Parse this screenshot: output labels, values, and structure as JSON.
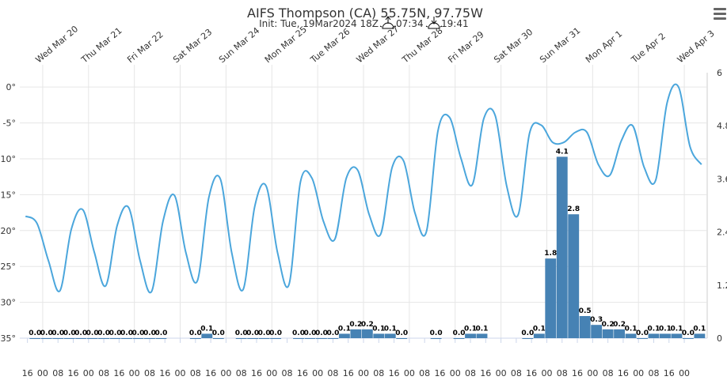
{
  "chart_data": {
    "type": "meteogram",
    "title": "AIFS Thompson (CA) 55.75N, 97.75W",
    "init": "Init: Tue, 19Mar2024 18Z",
    "sunrise": "07:34",
    "sunset": "19:41",
    "xlim": [
      0,
      360
    ],
    "xticks": [
      {
        "value": 4,
        "label": "16"
      },
      {
        "value": 12,
        "label": "00"
      },
      {
        "value": 20,
        "label": "08"
      },
      {
        "value": 28,
        "label": "16"
      },
      {
        "value": 36,
        "label": "00"
      },
      {
        "value": 44,
        "label": "08"
      },
      {
        "value": 52,
        "label": "16"
      },
      {
        "value": 60,
        "label": "00"
      },
      {
        "value": 68,
        "label": "08"
      },
      {
        "value": 76,
        "label": "16"
      },
      {
        "value": 84,
        "label": "00"
      },
      {
        "value": 92,
        "label": "08"
      },
      {
        "value": 100,
        "label": "16"
      },
      {
        "value": 108,
        "label": "00"
      },
      {
        "value": 116,
        "label": "08"
      },
      {
        "value": 124,
        "label": "16"
      },
      {
        "value": 132,
        "label": "00"
      },
      {
        "value": 140,
        "label": "08"
      },
      {
        "value": 148,
        "label": "16"
      },
      {
        "value": 156,
        "label": "00"
      },
      {
        "value": 164,
        "label": "08"
      },
      {
        "value": 172,
        "label": "16"
      },
      {
        "value": 180,
        "label": "00"
      },
      {
        "value": 188,
        "label": "08"
      },
      {
        "value": 196,
        "label": "16"
      },
      {
        "value": 204,
        "label": "00"
      },
      {
        "value": 212,
        "label": "08"
      },
      {
        "value": 220,
        "label": "16"
      },
      {
        "value": 228,
        "label": "00"
      },
      {
        "value": 236,
        "label": "08"
      },
      {
        "value": 244,
        "label": "16"
      },
      {
        "value": 252,
        "label": "00"
      },
      {
        "value": 260,
        "label": "08"
      },
      {
        "value": 268,
        "label": "16"
      },
      {
        "value": 276,
        "label": "00"
      },
      {
        "value": 284,
        "label": "08"
      },
      {
        "value": 292,
        "label": "16"
      },
      {
        "value": 300,
        "label": "00"
      },
      {
        "value": 308,
        "label": "08"
      },
      {
        "value": 316,
        "label": "16"
      },
      {
        "value": 324,
        "label": "00"
      },
      {
        "value": 332,
        "label": "08"
      },
      {
        "value": 340,
        "label": "16"
      },
      {
        "value": 348,
        "label": "00"
      }
    ],
    "x2ticks": [
      {
        "value": 12,
        "label": "Wed Mar 20"
      },
      {
        "value": 36,
        "label": "Thu Mar 21"
      },
      {
        "value": 60,
        "label": "Fri Mar 22"
      },
      {
        "value": 84,
        "label": "Sat Mar 23"
      },
      {
        "value": 108,
        "label": "Sun Mar 24"
      },
      {
        "value": 132,
        "label": "Mon Mar 25"
      },
      {
        "value": 156,
        "label": "Tue Mar 26"
      },
      {
        "value": 180,
        "label": "Wed Mar 27"
      },
      {
        "value": 204,
        "label": "Thu Mar 28"
      },
      {
        "value": 228,
        "label": "Fri Mar 29"
      },
      {
        "value": 252,
        "label": "Sat Mar 30"
      },
      {
        "value": 276,
        "label": "Sun Mar 31"
      },
      {
        "value": 300,
        "label": "Mon Apr 1"
      },
      {
        "value": 324,
        "label": "Tue Apr 2"
      },
      {
        "value": 348,
        "label": "Wed Apr 3"
      }
    ],
    "ylim": [
      -35,
      2
    ],
    "yticks": [
      {
        "value": 0,
        "label": "0°"
      },
      {
        "value": -5,
        "label": "-5°"
      },
      {
        "value": -10,
        "label": "-10°"
      },
      {
        "value": -15,
        "label": "-15°"
      },
      {
        "value": -20,
        "label": "-20°"
      },
      {
        "value": -25,
        "label": "-25°"
      },
      {
        "value": -30,
        "label": "-30°"
      },
      {
        "value": -35,
        "label": "-35°"
      }
    ],
    "y2lim": [
      0,
      6
    ],
    "y2ticks": [
      0,
      1.2,
      2.4,
      3.6,
      4.8,
      6
    ],
    "grid": true,
    "series": [
      {
        "type": "line",
        "color": "#4ba6dc",
        "x": [
          3,
          9,
          15,
          21,
          27,
          33,
          39,
          45,
          51,
          57,
          63,
          69,
          75,
          81,
          87,
          93,
          99,
          105,
          111,
          117,
          123,
          129,
          135,
          141,
          147,
          153,
          159,
          165,
          171,
          177,
          183,
          189,
          195,
          201,
          207,
          213,
          219,
          225,
          231,
          237,
          243,
          249,
          255,
          261,
          267,
          273,
          279,
          285,
          291,
          297,
          303,
          309,
          315,
          321,
          327,
          333,
          339,
          345,
          351,
          357
        ],
        "values": [
          -18.0,
          -19.0,
          -24.2,
          -28.4,
          -19.8,
          -17.1,
          -23.0,
          -27.7,
          -19.3,
          -16.8,
          -24.2,
          -28.5,
          -18.7,
          -15.1,
          -23.1,
          -27.0,
          -15.4,
          -12.8,
          -23.1,
          -28.2,
          -16.7,
          -13.8,
          -23.1,
          -27.5,
          -13.2,
          -12.7,
          -18.7,
          -21.2,
          -12.7,
          -11.6,
          -17.8,
          -20.5,
          -11.2,
          -10.3,
          -17.6,
          -20.1,
          -6.1,
          -4.2,
          -9.9,
          -13.6,
          -4.4,
          -4.0,
          -13.8,
          -17.8,
          -6.4,
          -5.3,
          -7.7,
          -7.7,
          -6.3,
          -6.3,
          -10.8,
          -12.3,
          -7.5,
          -5.4,
          -11.2,
          -13.0,
          -2.2,
          0,
          -8.3,
          -10.8
        ]
      },
      {
        "type": "bar",
        "axis": "y2",
        "color": "#4682b4",
        "x": [
          2,
          8,
          14,
          20,
          26,
          32,
          38,
          44,
          50,
          56,
          62,
          68,
          74,
          80,
          86,
          92,
          98,
          104,
          110,
          116,
          122,
          128,
          134,
          140,
          146,
          152,
          158,
          164,
          170,
          176,
          182,
          188,
          194,
          200,
          206,
          212,
          218,
          224,
          230,
          236,
          242,
          248,
          254,
          260,
          266,
          272,
          278,
          284,
          290,
          296,
          302,
          308,
          314,
          320,
          326,
          332,
          338,
          344,
          350,
          356
        ],
        "values": [
          null,
          0,
          0,
          0,
          0,
          0,
          0,
          0,
          0,
          0,
          0,
          0,
          0,
          null,
          null,
          0,
          0.1,
          0,
          null,
          0,
          0,
          0,
          0,
          null,
          0,
          0,
          0,
          0,
          0.1,
          0.2,
          0.2,
          0.1,
          0.1,
          0,
          null,
          null,
          0,
          null,
          0,
          0.1,
          0.1,
          null,
          null,
          null,
          0,
          0.1,
          1.8,
          4.1,
          2.8,
          0.5,
          0.3,
          0.2,
          0.2,
          0.1,
          0,
          0.1,
          0.1,
          0.1,
          0,
          0.1
        ],
        "value_labels": [
          null,
          "0.0",
          "0.0",
          "0.0",
          "0.0",
          "0.0",
          "0.0",
          "0.0",
          "0.0",
          "0.0",
          "0.0",
          "0.0",
          "0.0",
          null,
          null,
          "0.0",
          "0.1",
          "0.0",
          null,
          "0.0",
          "0.0",
          "0.0",
          "0.0",
          null,
          "0.0",
          "0.0",
          "0.0",
          "0.0",
          "0.1",
          "0.2",
          "0.2",
          "0.1",
          "0.1",
          "0.0",
          null,
          null,
          "0.0",
          null,
          "0.0",
          "0.1",
          "0.1",
          null,
          null,
          null,
          "0.0",
          "0.1",
          "1.8",
          "4.1",
          "2.8",
          "0.5",
          "0.3",
          "0.2",
          "0.2",
          "0.1",
          "0.0",
          "0.1",
          "0.1",
          "0.1",
          "0.0",
          "0.1"
        ]
      }
    ]
  }
}
